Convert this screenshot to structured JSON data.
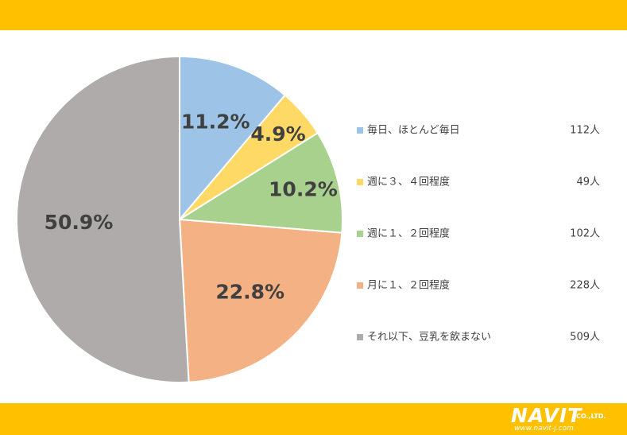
{
  "chart_data": {
    "type": "pie",
    "title": "",
    "slices": [
      {
        "label": "毎日、ほとんど毎日",
        "value": 11.2,
        "percent_label": "11.2%",
        "count": "112人",
        "color": "#9dc3e6"
      },
      {
        "label": "週に３、４回程度",
        "value": 4.9,
        "percent_label": "4.9%",
        "count": "49人",
        "color": "#ffd966"
      },
      {
        "label": "週に１、２回程度",
        "value": 10.2,
        "percent_label": "10.2%",
        "count": "102人",
        "color": "#a9d18e"
      },
      {
        "label": "月に１、２回程度",
        "value": 22.8,
        "percent_label": "22.8%",
        "count": "228人",
        "color": "#f4b183"
      },
      {
        "label": "それ以下、豆乳を飲まない",
        "value": 50.9,
        "percent_label": "50.9%",
        "count": "509人",
        "color": "#afabab"
      }
    ],
    "legend_position": "right"
  },
  "colors": {
    "band": "#ffc000",
    "text": "#404040"
  },
  "logo": {
    "name": "NAVIT",
    "company": "CO.,LTD.",
    "url": "www.navit-j.com"
  }
}
